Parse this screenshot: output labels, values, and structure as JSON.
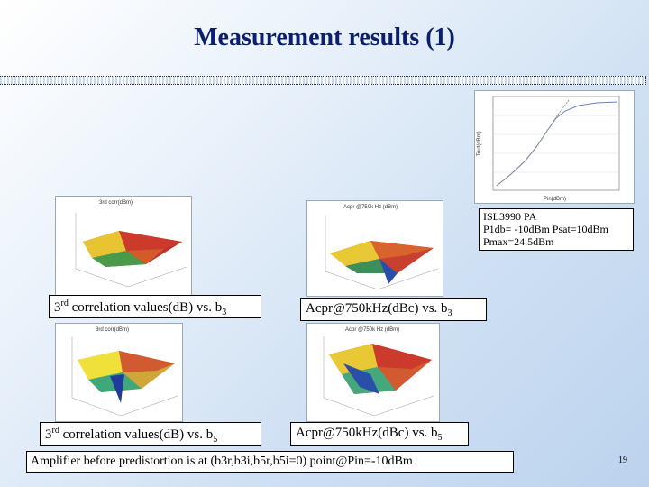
{
  "slide": {
    "title": "Measurement results (1)",
    "page_number": "19"
  },
  "labels": {
    "b3_corr_base": "3",
    "b3_corr_sup": "rd",
    "b3_corr_text": " correlation values(dB) vs. b",
    "b3_corr_sub": "3",
    "acpr_b3_text": "Acpr@750kHz(dBc) vs. b",
    "acpr_b3_sub": "3",
    "b5_corr_base": "3",
    "b5_corr_sup": "rd",
    "b5_corr_text": " correlation values(dB) vs. b",
    "b5_corr_sub": "5",
    "acpr_b5_text": "Acpr@750kHz(dBc) vs. b",
    "acpr_b5_sub": "5"
  },
  "pa_note": {
    "line1": "ISL3990 PA",
    "line2": "P1db= -10dBm Psat=10dBm",
    "line3": "Pmax=24.5dBm"
  },
  "footer": "Amplifier before predistortion is at (b3r,b3i,b5r,b5i=0) point@Pin=-10dBm",
  "plots": {
    "top_left_title": "3rd corr(dBm)",
    "top_right_title": "Acpr @750k Hz (dBm)",
    "bottom_left_title": "3rd corr(dBm)",
    "bottom_right_title": "Acpr @750k Hz (dBm)",
    "pa_curve_ylabel": "Tout(dBm)",
    "pa_curve_xlabel": "Pin(dBm)"
  },
  "colors": {
    "title": "#0b1f6e"
  }
}
